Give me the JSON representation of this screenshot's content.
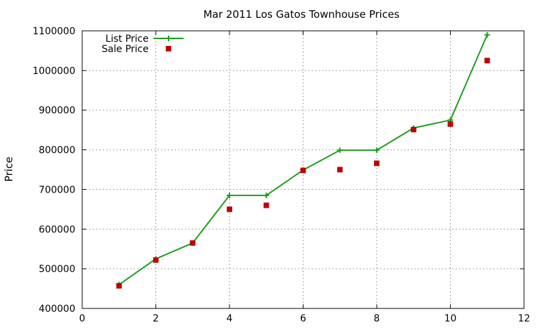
{
  "chart_data": {
    "type": "line",
    "title": "Mar 2011 Los Gatos Townhouse Prices",
    "xlabel": "",
    "ylabel": "Price",
    "xlim": [
      0,
      12
    ],
    "ylim": [
      400000,
      1100000
    ],
    "xticks": [
      0,
      2,
      4,
      6,
      8,
      10,
      12
    ],
    "yticks": [
      400000,
      500000,
      600000,
      700000,
      800000,
      900000,
      1000000,
      1100000
    ],
    "grid": true,
    "legend_position": "top-left",
    "series": [
      {
        "name": "List Price",
        "style": "line+cross",
        "color": "#1a9e1a",
        "x": [
          1,
          2,
          3,
          4,
          5,
          6,
          7,
          8,
          9,
          10,
          11
        ],
        "y": [
          460000,
          525000,
          565000,
          685000,
          685000,
          749000,
          799000,
          799000,
          855000,
          875000,
          1090000
        ]
      },
      {
        "name": "Sale Price",
        "style": "square",
        "color": "#c00000",
        "x": [
          1,
          2,
          3,
          4,
          5,
          6,
          7,
          8,
          9,
          10,
          11
        ],
        "y": [
          457000,
          522000,
          565000,
          650000,
          660000,
          748000,
          750000,
          766000,
          851000,
          865000,
          1025000
        ]
      }
    ]
  }
}
